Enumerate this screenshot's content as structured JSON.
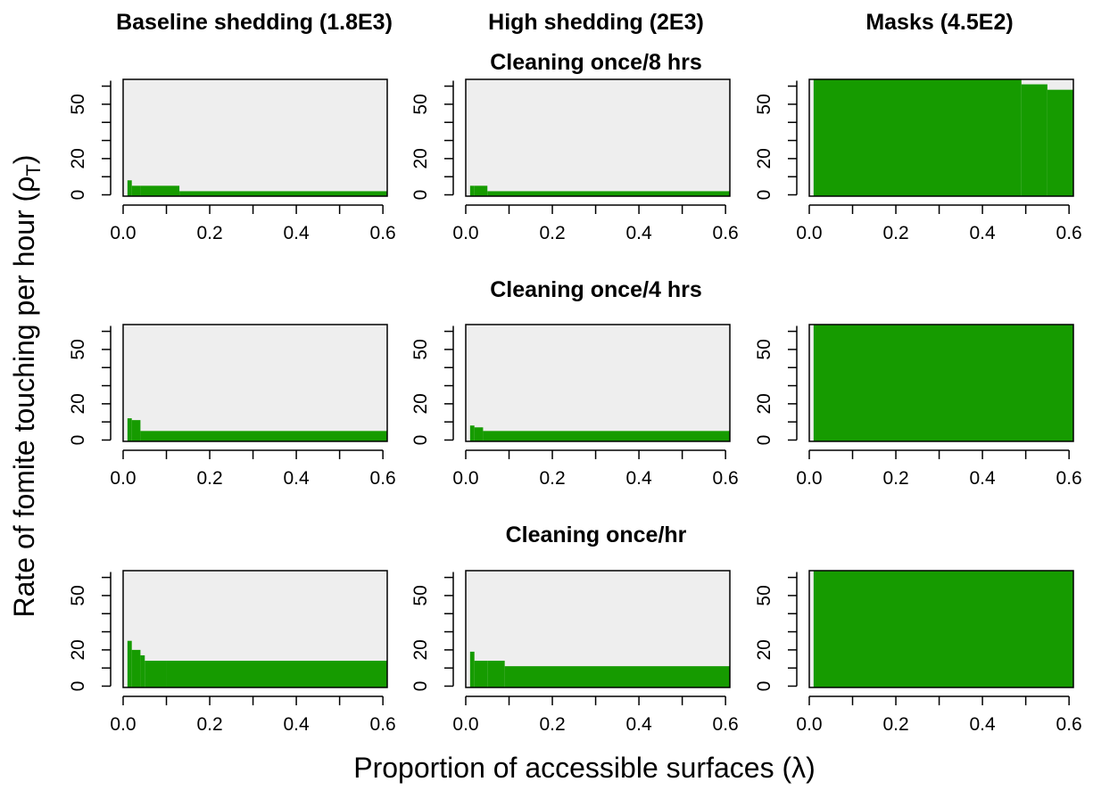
{
  "figure": {
    "column_titles": [
      "Baseline shedding (1.8E3)",
      "High shedding (2E3)",
      "Masks (4.5E2)"
    ],
    "row_titles": [
      "Cleaning once/8 hrs",
      "Cleaning once/4 hrs",
      "Cleaning once/hr"
    ],
    "ylabel": "Rate of fomite touching per hour (ρ",
    "ylabel_subscript": "T",
    "ylabel_close": ")",
    "xlabel": "Proportion of accessible surfaces (λ)",
    "colors": {
      "feasible": "#169b00",
      "background": "#eeeeee",
      "axis": "#000000"
    }
  },
  "chart_data": {
    "type": "area",
    "description_of_values": "Each panel shows, for each proportion λ, the minimum rate of fomite touching ρT (per hour) above which the region is shaded green.",
    "xlim": [
      0,
      0.61
    ],
    "ylim": [
      0,
      63
    ],
    "x_ticks": [
      "0.0",
      "0.2",
      "0.4",
      "0.6"
    ],
    "x_tick_values": [
      0,
      0.2,
      0.4,
      0.6
    ],
    "x_minor_ticks": [
      0.1,
      0.3,
      0.5
    ],
    "y_ticks": [
      "0",
      "20",
      "50"
    ],
    "y_tick_values": [
      0,
      20,
      50
    ],
    "y_minor_ticks": [
      10,
      30,
      40,
      60
    ],
    "panels": [
      {
        "row": 0,
        "col": 0,
        "steps": [
          [
            0.01,
            0.02,
            8
          ],
          [
            0.02,
            0.04,
            5
          ],
          [
            0.04,
            0.13,
            5
          ],
          [
            0.13,
            0.61,
            2
          ]
        ]
      },
      {
        "row": 0,
        "col": 1,
        "steps": [
          [
            0.01,
            0.02,
            5
          ],
          [
            0.02,
            0.05,
            5
          ],
          [
            0.05,
            0.61,
            2
          ]
        ]
      },
      {
        "row": 0,
        "col": 2,
        "steps": [
          [
            0.01,
            0.49,
            0
          ],
          [
            0.49,
            0.55,
            61
          ],
          [
            0.55,
            0.61,
            58
          ]
        ],
        "top": 63
      },
      {
        "row": 1,
        "col": 0,
        "steps": [
          [
            0.01,
            0.02,
            12
          ],
          [
            0.02,
            0.04,
            11
          ],
          [
            0.04,
            0.61,
            5
          ]
        ]
      },
      {
        "row": 1,
        "col": 1,
        "steps": [
          [
            0.01,
            0.02,
            8
          ],
          [
            0.02,
            0.04,
            7
          ],
          [
            0.04,
            0.61,
            5
          ]
        ]
      },
      {
        "row": 1,
        "col": 2,
        "steps": [
          [
            0.01,
            0.61,
            0
          ]
        ]
      },
      {
        "row": 2,
        "col": 0,
        "steps": [
          [
            0.01,
            0.02,
            25
          ],
          [
            0.02,
            0.04,
            20
          ],
          [
            0.04,
            0.05,
            17
          ],
          [
            0.05,
            0.1,
            14
          ],
          [
            0.1,
            0.61,
            14
          ]
        ]
      },
      {
        "row": 2,
        "col": 1,
        "steps": [
          [
            0.01,
            0.02,
            19
          ],
          [
            0.02,
            0.05,
            14
          ],
          [
            0.05,
            0.09,
            14
          ],
          [
            0.09,
            0.61,
            11
          ]
        ]
      },
      {
        "row": 2,
        "col": 2,
        "steps": [
          [
            0.01,
            0.61,
            0
          ]
        ]
      }
    ]
  }
}
